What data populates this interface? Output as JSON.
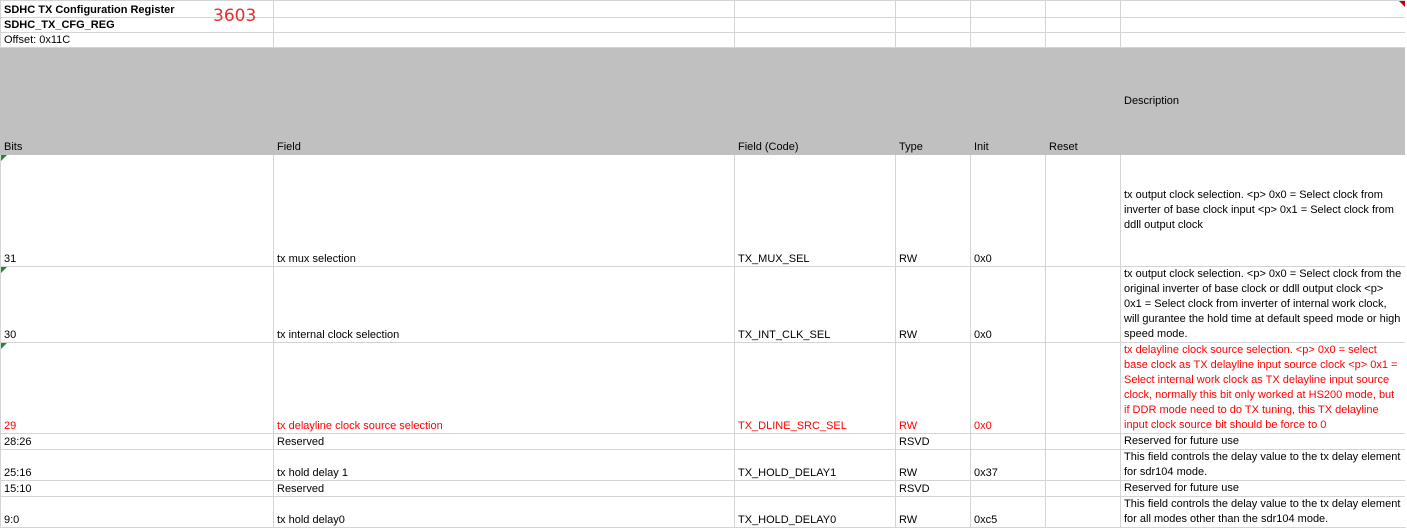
{
  "sheet": {
    "title": "SDHC TX Configuration Register",
    "register_name": "SDHC_TX_CFG_REG",
    "offset": "Offset: 0x11C",
    "cell_note": "3603",
    "columns": {
      "bits": "Bits",
      "field": "Field",
      "field_code": "Field (Code)",
      "type": "Type",
      "init": "Init",
      "reset": "Reset",
      "description": "Description"
    },
    "rows": [
      {
        "bits": "31",
        "field": "tx mux selection",
        "code": "TX_MUX_SEL",
        "type": "RW",
        "init": "0x0",
        "reset": "",
        "description": "tx output clock selection. <p> 0x0 = Select clock from inverter of base clock input <p> 0x1 = Select clock from ddll output clock"
      },
      {
        "bits": "30",
        "field": "tx internal clock selection",
        "code": "TX_INT_CLK_SEL",
        "type": "RW",
        "init": "0x0",
        "reset": "",
        "description": "tx output clock selection. <p> 0x0 = Select clock from the original inverter of base clock or ddll output clock <p> 0x1 = Select clock from inverter of internal work clock, will gurantee the hold time at default speed mode or high speed mode."
      },
      {
        "bits": "29",
        "field": "tx delayline clock  source selection",
        "code": "TX_DLINE_SRC_SEL",
        "type": "RW",
        "init": "0x0",
        "reset": "",
        "description": "tx delayline clock source selection. <p> 0x0 = select base clock as TX delayline input source clock  <p> 0x1 = Select internal work clock as TX delayline input source clock, normally this bit only worked at HS200 mode, but if DDR mode need to do TX tuning, this TX delayline input clock source bit should be force to 0"
      },
      {
        "bits": "28:26",
        "field": "Reserved",
        "code": "",
        "type": "RSVD",
        "init": "",
        "reset": "",
        "description": "Reserved for future use"
      },
      {
        "bits": "25:16",
        "field": "tx hold delay 1",
        "code": "TX_HOLD_DELAY1",
        "type": "RW",
        "init": "0x37",
        "reset": "",
        "description": "This field controls the delay value to the tx delay element for sdr104 mode."
      },
      {
        "bits": "15:10",
        "field": "Reserved",
        "code": "",
        "type": "RSVD",
        "init": "",
        "reset": "",
        "description": "Reserved for future use"
      },
      {
        "bits": "9:0",
        "field": "tx hold delay0",
        "code": "TX_HOLD_DELAY0",
        "type": "RW",
        "init": "0xc5",
        "reset": "",
        "description": "This field controls the delay value to the tx delay element for all modes other than the sdr104 mode."
      }
    ]
  },
  "colors": {
    "header_fill": "#c0c0c0",
    "highlight_text": "#ff0000",
    "note_text": "#e03030",
    "comment_marker": "#1f8a3c",
    "gridline": "#d4d4d4"
  }
}
